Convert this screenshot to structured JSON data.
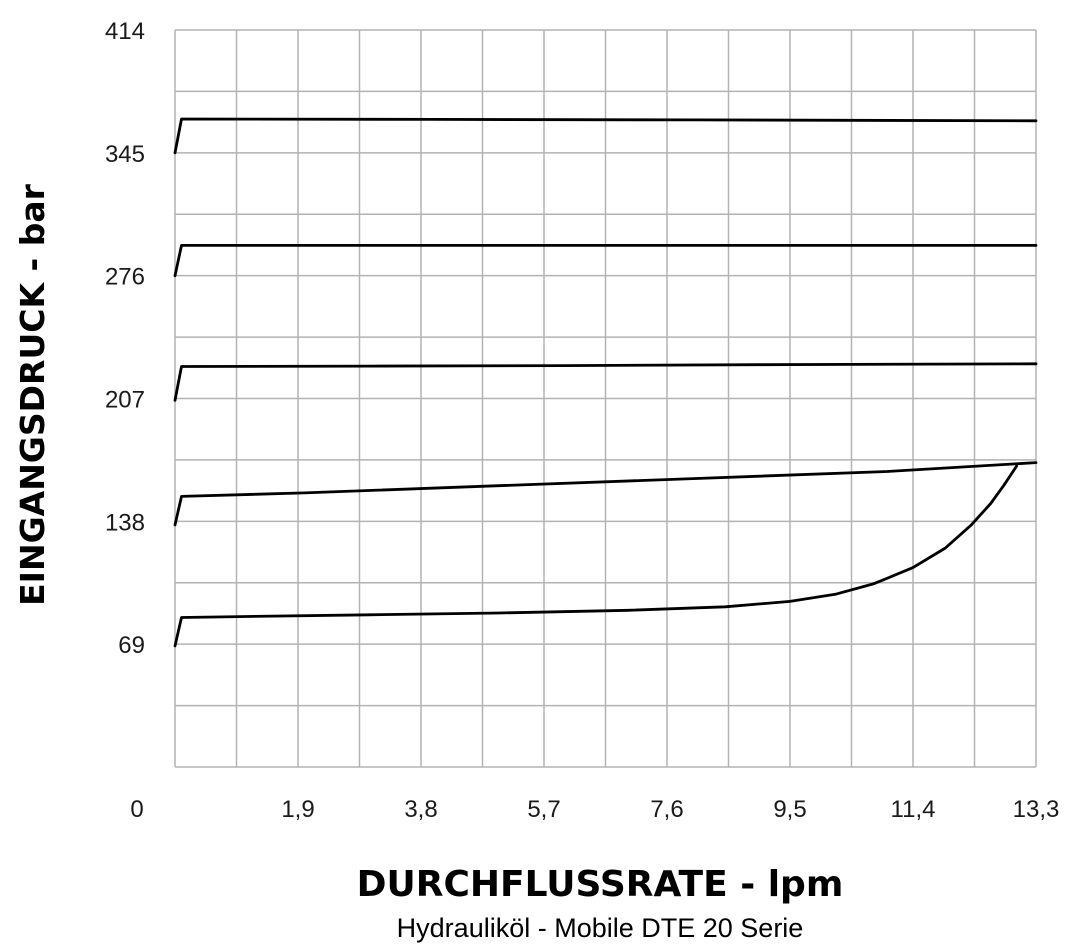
{
  "chart_data": {
    "type": "line",
    "xlabel": "DURCHFLUSSRATE - lpm",
    "ylabel": "EINGANGSDRUCK - bar",
    "subtitle": "Hydrauliköl - Mobile DTE 20 Serie",
    "xlim": [
      0,
      13.3
    ],
    "ylim": [
      0,
      414
    ],
    "x_tick_labels": [
      "0",
      "1,9",
      "3,8",
      "5,7",
      "7,6",
      "9,5",
      "11,4",
      "13,3"
    ],
    "y_tick_labels": [
      "69",
      "138",
      "207",
      "276",
      "345",
      "414"
    ],
    "grid": true,
    "legend": "none",
    "line_color": "#000000",
    "grid_color": "#b3b3b3",
    "series": [
      {
        "x": [
          0,
          0.1,
          1.0,
          3.0,
          5.0,
          7.0,
          8.5,
          9.5,
          10.2,
          10.8,
          11.4,
          11.9,
          12.3,
          12.6,
          12.8,
          13.0
        ],
        "y": [
          68,
          84,
          84.5,
          85.5,
          86.5,
          88,
          90,
          93,
          97,
          103,
          112,
          123,
          136,
          148,
          158,
          169
        ]
      },
      {
        "x": [
          0,
          0.1,
          2.0,
          5.0,
          8.0,
          11.0,
          13.3
        ],
        "y": [
          136,
          152,
          154,
          158,
          162,
          166,
          171
        ]
      },
      {
        "x": [
          0,
          0.1,
          3.0,
          6.0,
          9.0,
          13.3
        ],
        "y": [
          206,
          225,
          225.2,
          225.5,
          226,
          226.5
        ]
      },
      {
        "x": [
          0,
          0.1,
          4.0,
          8.0,
          13.3
        ],
        "y": [
          276,
          293,
          293,
          293,
          293
        ]
      },
      {
        "x": [
          0,
          0.1,
          4.0,
          8.0,
          13.3
        ],
        "y": [
          345,
          364,
          363.8,
          363.5,
          363
        ]
      }
    ]
  }
}
